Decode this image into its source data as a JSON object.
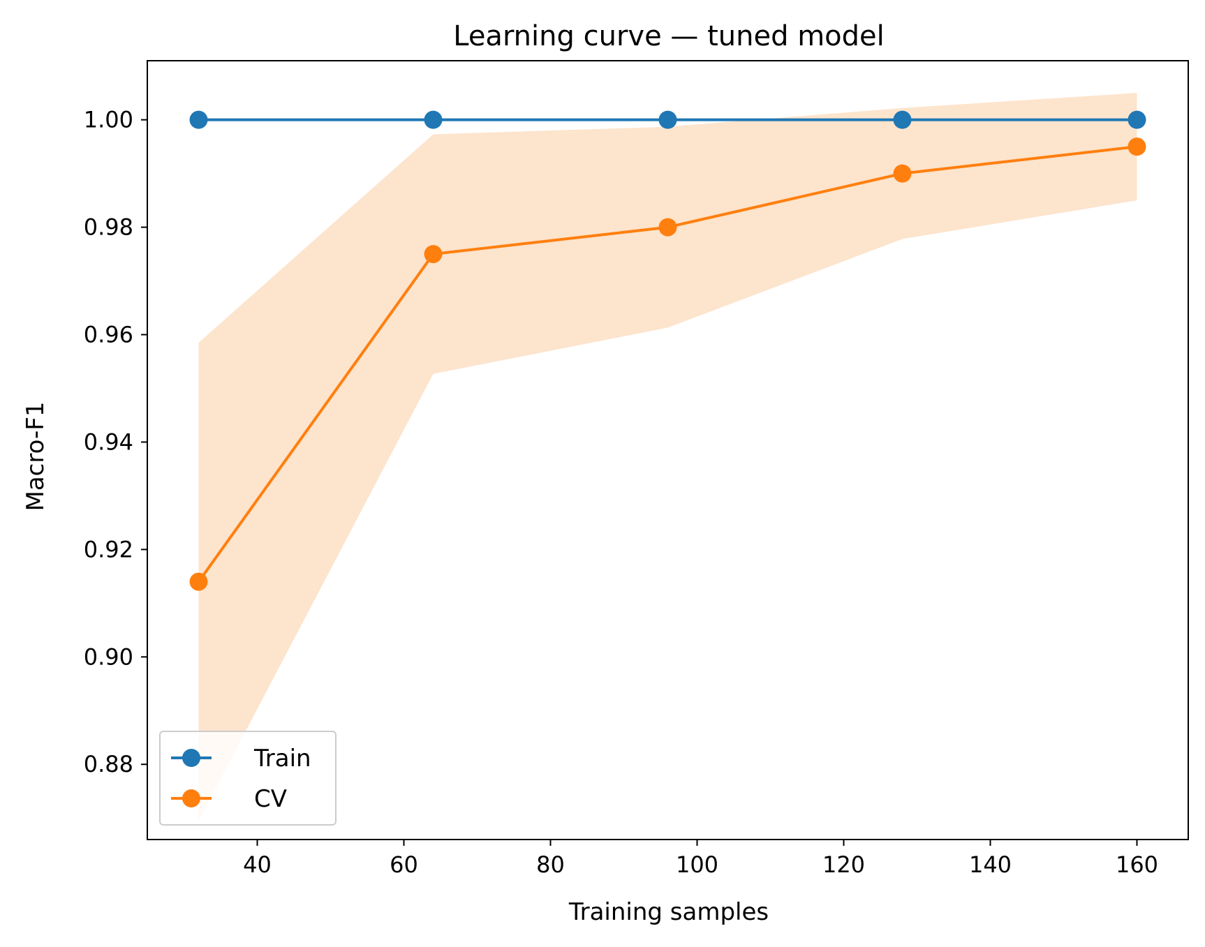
{
  "chart_data": {
    "type": "line",
    "title": "Learning curve — tuned model",
    "xlabel": "Training samples",
    "ylabel": "Macro-F1",
    "xlim": [
      25,
      167
    ],
    "ylim": [
      0.866,
      1.011
    ],
    "xticks": [
      40,
      60,
      80,
      100,
      120,
      140,
      160
    ],
    "xtick_labels": [
      "40",
      "60",
      "80",
      "100",
      "120",
      "140",
      "160"
    ],
    "yticks": [
      0.88,
      0.9,
      0.92,
      0.94,
      0.96,
      0.98,
      1.0
    ],
    "ytick_labels": [
      "0.88",
      "0.90",
      "0.92",
      "0.94",
      "0.96",
      "0.98",
      "1.00"
    ],
    "x": [
      32,
      64,
      96,
      128,
      160
    ],
    "series": [
      {
        "name": "Train",
        "values": [
          1.0,
          1.0,
          1.0,
          1.0,
          1.0
        ],
        "color": "#1f77b4"
      },
      {
        "name": "CV",
        "values": [
          0.914,
          0.975,
          0.98,
          0.99,
          0.995
        ],
        "color": "#ff7f0e",
        "band_upper": [
          0.9585,
          0.9973,
          0.9987,
          1.0022,
          1.005
        ],
        "band_lower": [
          0.8695,
          0.9527,
          0.9613,
          0.9778,
          0.985
        ],
        "band_color": "#fde4cd"
      }
    ],
    "grid": false,
    "legend_position": "lower-left"
  }
}
